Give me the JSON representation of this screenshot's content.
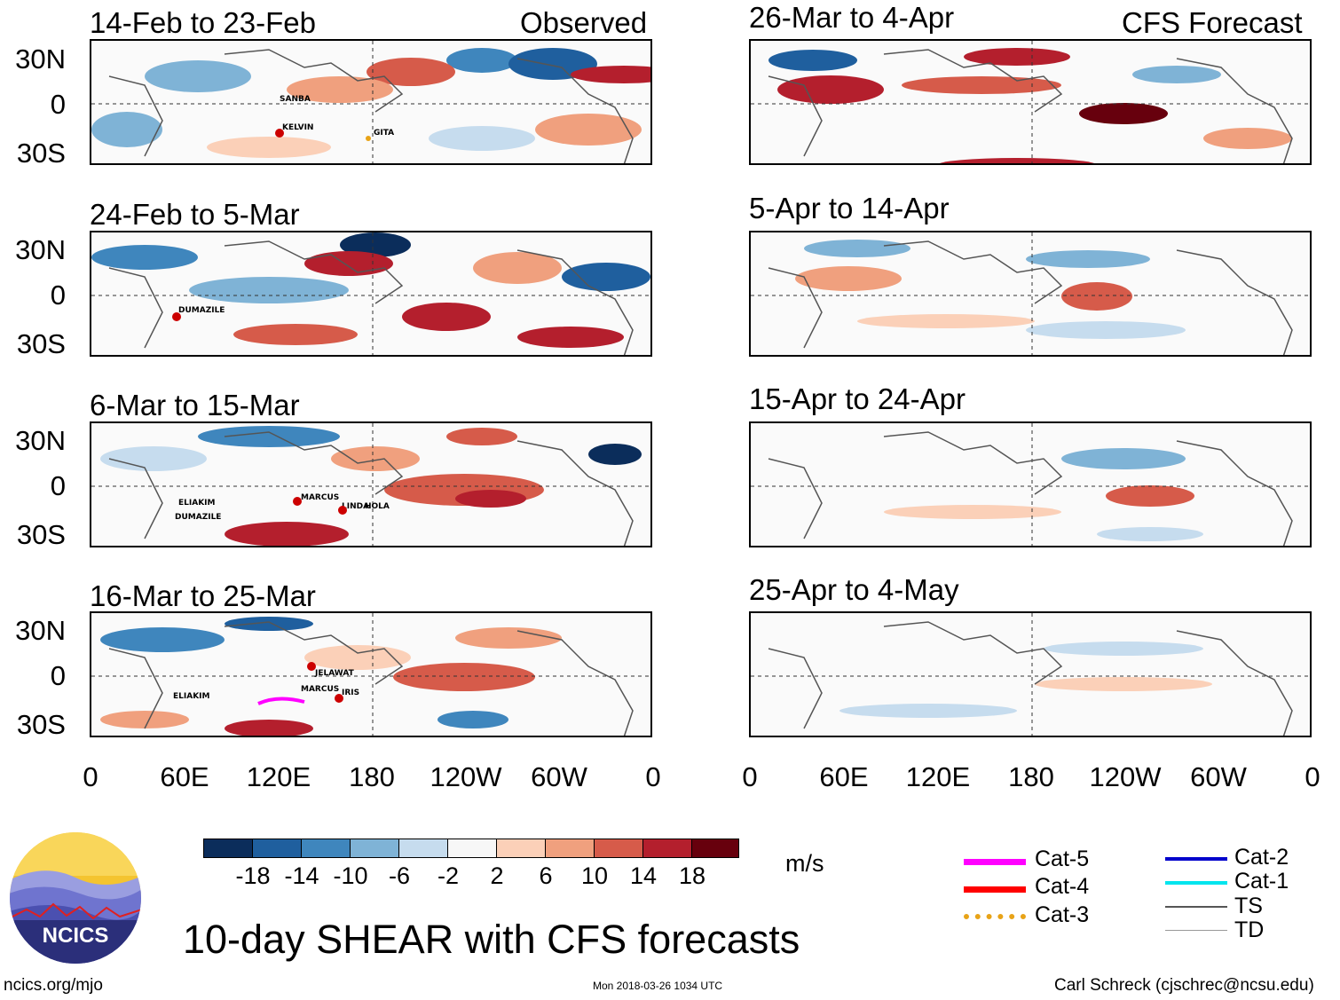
{
  "header": {
    "observed_label": "Observed",
    "forecast_label": "CFS Forecast"
  },
  "panels": {
    "observed": [
      {
        "title": "14-Feb to 23-Feb",
        "storms": [
          "SANBA",
          "KELVIN",
          "GITA"
        ]
      },
      {
        "title": "24-Feb to 5-Mar",
        "storms": [
          "DUMAZILE"
        ]
      },
      {
        "title": "6-Mar to 15-Mar",
        "storms": [
          "ELIAKIM",
          "DUMAZILE",
          "MARCUS",
          "LINDA",
          "HOLA"
        ]
      },
      {
        "title": "16-Mar to 25-Mar",
        "storms": [
          "JELAWAT",
          "MARCUS",
          "IRIS",
          "ELIAKIM"
        ]
      }
    ],
    "forecast": [
      {
        "title": "26-Mar to 4-Apr"
      },
      {
        "title": "5-Apr to 14-Apr"
      },
      {
        "title": "15-Apr to 24-Apr"
      },
      {
        "title": "25-Apr to 4-May"
      }
    ]
  },
  "axes": {
    "lat_labels": [
      "30N",
      "0",
      "30S"
    ],
    "lon_labels": [
      "0",
      "60E",
      "120E",
      "180",
      "120W",
      "60W",
      "0"
    ]
  },
  "colorbar": {
    "unit": "m/s",
    "labels": [
      "-18",
      "-14",
      "-10",
      "-6",
      "-2",
      "2",
      "6",
      "10",
      "14",
      "18"
    ],
    "colors": [
      "#0b2d5b",
      "#1f5f9e",
      "#3f86bd",
      "#7fb3d6",
      "#c6dcee",
      "#f7f7f7",
      "#fbd0b8",
      "#f0a07e",
      "#d65b4a",
      "#b41f2d",
      "#67000d"
    ]
  },
  "legend": {
    "items": [
      {
        "label": "Cat-5",
        "color": "#ff00ff"
      },
      {
        "label": "Cat-4",
        "color": "#ff0000"
      },
      {
        "label": "Cat-3",
        "color": "#e8a317"
      },
      {
        "label": "Cat-2",
        "color": "#0000cc"
      },
      {
        "label": "Cat-1",
        "color": "#00e5ee"
      },
      {
        "label": "TS",
        "color": "#555555"
      },
      {
        "label": "TD",
        "color": "#999999"
      }
    ]
  },
  "footer": {
    "logo_text": "NCICS",
    "main_title": "10-day SHEAR with CFS forecasts",
    "url": "ncics.org/mjo",
    "timestamp": "Mon 2018-03-26 1034 UTC",
    "credit": "Carl Schreck (cjschrec@ncsu.edu)"
  }
}
